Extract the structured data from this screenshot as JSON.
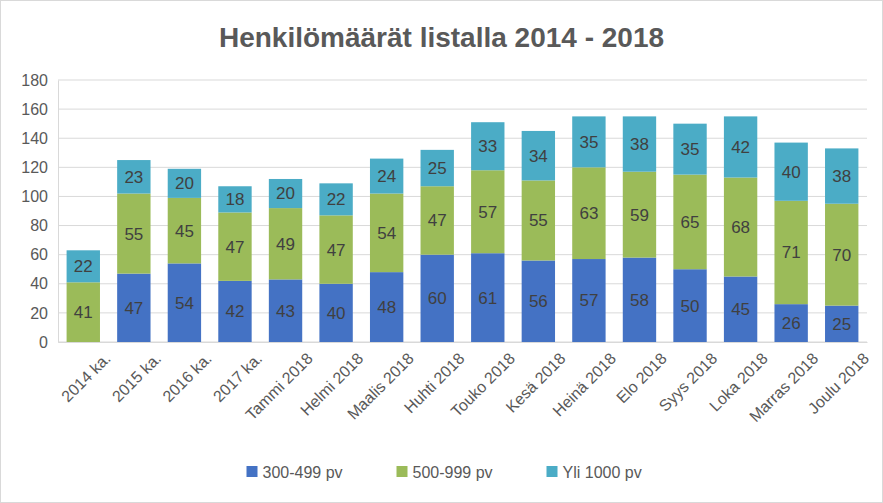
{
  "chart_data": {
    "type": "bar",
    "title": "Henkilömäärät listalla 2014 - 2018",
    "categories": [
      "2014 ka.",
      "2015 ka.",
      "2016 ka.",
      "2017 ka.",
      "Tammi 2018",
      "Helmi 2018",
      "Maalis 2018",
      "Huhti 2018",
      "Touko 2018",
      "Kesä 2018",
      "Heinä 2018",
      "Elo 2018",
      "Syys 2018",
      "Loka 2018",
      "Marras 2018",
      "Joulu 2018"
    ],
    "series": [
      {
        "name": "300-499 pv",
        "color": "#4472c4",
        "values": [
          null,
          47,
          54,
          42,
          43,
          40,
          48,
          60,
          61,
          56,
          57,
          58,
          50,
          45,
          26,
          25
        ]
      },
      {
        "name": "500-999 pv",
        "color": "#9bbb59",
        "values": [
          41,
          55,
          45,
          47,
          49,
          47,
          54,
          47,
          57,
          55,
          63,
          59,
          65,
          68,
          71,
          70
        ]
      },
      {
        "name": "Yli 1000 pv",
        "color": "#4bacc6",
        "values": [
          22,
          23,
          20,
          18,
          20,
          22,
          24,
          25,
          33,
          34,
          35,
          38,
          35,
          42,
          40,
          38
        ]
      }
    ],
    "ylim": [
      0,
      180
    ],
    "yticks": [
      0,
      20,
      40,
      60,
      80,
      100,
      120,
      140,
      160,
      180
    ],
    "stacked": true,
    "grid": true,
    "data_labels": true,
    "legend": "bottom"
  }
}
